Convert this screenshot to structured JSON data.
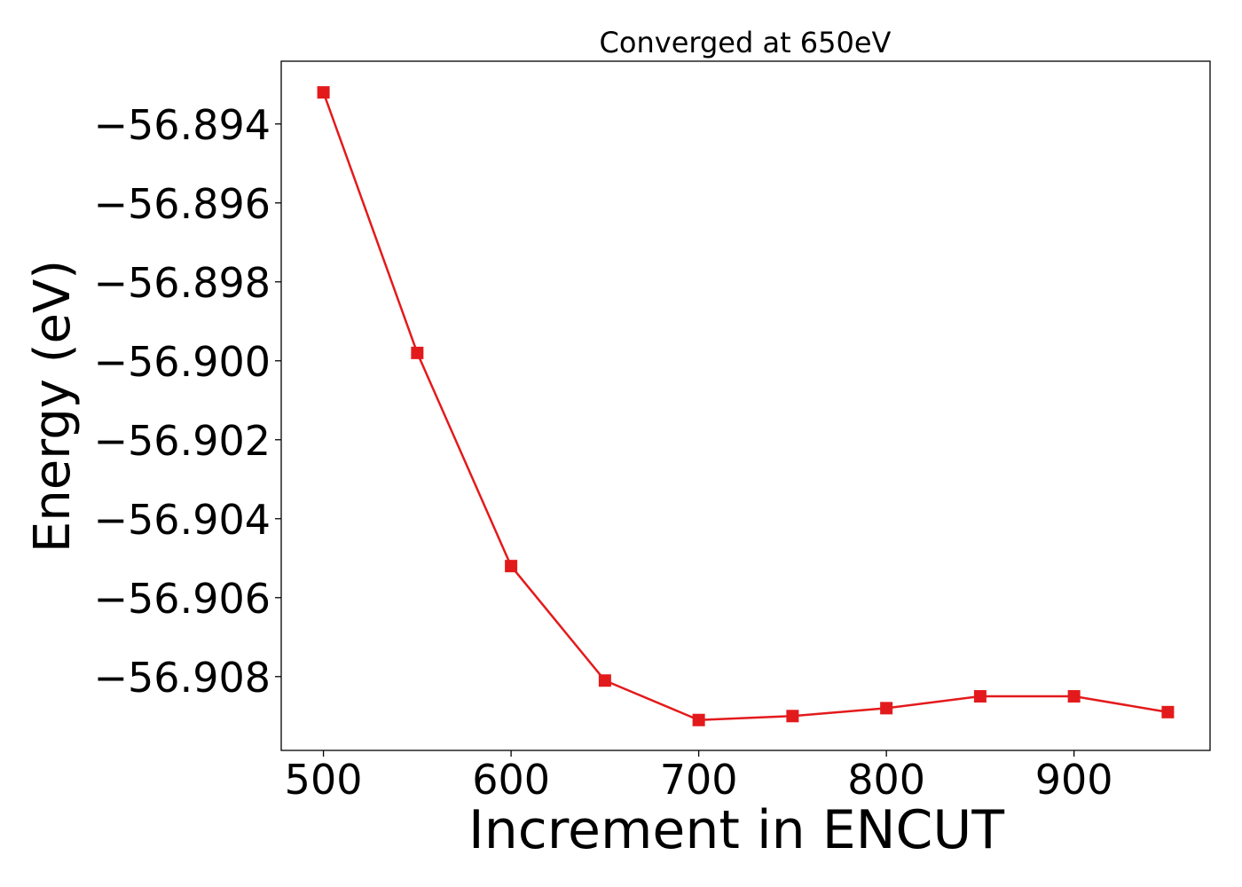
{
  "chart_data": {
    "type": "line",
    "title": "Converged at 650eV",
    "xlabel": "Increment in ENCUT",
    "ylabel": "Energy (eV)",
    "x": [
      500,
      550,
      600,
      650,
      700,
      750,
      800,
      850,
      900,
      950
    ],
    "series": [
      {
        "values": [
          -56.8932,
          -56.8998,
          -56.9052,
          -56.9081,
          -56.9091,
          -56.909,
          -56.9088,
          -56.9085,
          -56.9085,
          -56.9089
        ],
        "color": "#e31a1c",
        "marker": "square"
      }
    ],
    "xticks": [
      500,
      600,
      700,
      800,
      900
    ],
    "xtick_labels": [
      "500",
      "600",
      "700",
      "800",
      "900"
    ],
    "yticks": [
      -56.894,
      -56.896,
      -56.898,
      -56.9,
      -56.902,
      -56.904,
      -56.906,
      -56.908
    ],
    "ytick_labels": [
      "−56.894",
      "−56.896",
      "−56.898",
      "−56.900",
      "−56.902",
      "−56.904",
      "−56.906",
      "−56.908"
    ],
    "xlim": [
      477.5,
      972.5
    ],
    "ylim": [
      -56.90987,
      -56.89241
    ],
    "grid": false,
    "legend": "none"
  }
}
